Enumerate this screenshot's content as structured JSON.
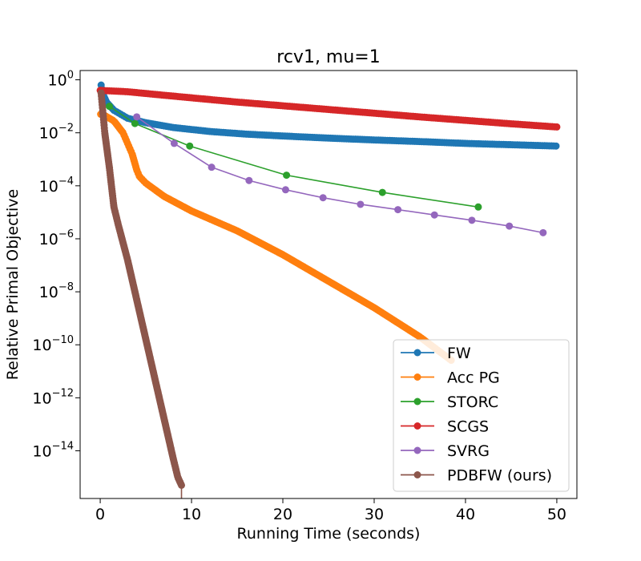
{
  "chart_data": {
    "type": "line",
    "title": "rcv1, mu=1",
    "xlabel": "Running Time (seconds)",
    "ylabel": "Relative Primal Objective",
    "y_scale": "log",
    "xlim": [
      -2.2,
      52.2
    ],
    "ylim_log10": [
      -15.8,
      0.35
    ],
    "x_ticks": [
      0,
      10,
      20,
      30,
      40,
      50
    ],
    "x_tick_labels": [
      "0",
      "10",
      "20",
      "30",
      "40",
      "50"
    ],
    "y_ticks_log10": [
      0,
      -2,
      -4,
      -6,
      -8,
      -10,
      -12,
      -14
    ],
    "y_tick_labels": [
      {
        "base": "10",
        "exp": "0"
      },
      {
        "base": "10",
        "exp": "−2"
      },
      {
        "base": "10",
        "exp": "−4"
      },
      {
        "base": "10",
        "exp": "−6"
      },
      {
        "base": "10",
        "exp": "−8"
      },
      {
        "base": "10",
        "exp": "−10"
      },
      {
        "base": "10",
        "exp": "−12"
      },
      {
        "base": "10",
        "exp": "−14"
      }
    ],
    "grid": false,
    "legend_position": "lower-right",
    "series": [
      {
        "name": "FW",
        "color": "#1f77b4",
        "dense": true,
        "x": [
          0.1,
          0.3,
          0.7,
          1.5,
          3,
          5,
          8,
          12,
          16,
          20,
          25,
          30,
          35,
          40,
          45,
          50
        ],
        "log10y": [
          -0.2,
          -0.55,
          -0.85,
          -1.15,
          -1.45,
          -1.62,
          -1.8,
          -1.95,
          -2.05,
          -2.12,
          -2.2,
          -2.27,
          -2.33,
          -2.4,
          -2.45,
          -2.5
        ]
      },
      {
        "name": "Acc PG",
        "color": "#ff7f0e",
        "dense": true,
        "x": [
          0.05,
          0.5,
          1.5,
          2.5,
          3.5,
          4.0,
          4.3,
          5,
          7,
          10,
          15,
          20,
          25,
          30,
          35,
          38.5
        ],
        "log10y": [
          -1.3,
          -1.35,
          -1.55,
          -2.0,
          -2.8,
          -3.4,
          -3.65,
          -3.9,
          -4.4,
          -4.95,
          -5.7,
          -6.6,
          -7.6,
          -8.6,
          -9.7,
          -10.6
        ]
      },
      {
        "name": "STORC",
        "color": "#2ca02c",
        "dense": false,
        "x": [
          1.0,
          3.8,
          9.8,
          20.4,
          30.9,
          41.4
        ],
        "log10y": [
          -1.0,
          -1.65,
          -2.5,
          -3.6,
          -4.25,
          -4.8
        ]
      },
      {
        "name": "SCGS",
        "color": "#d62728",
        "dense": true,
        "x": [
          0,
          3,
          6,
          10,
          15,
          20,
          25,
          30,
          35,
          40,
          45,
          50
        ],
        "log10y": [
          -0.4,
          -0.45,
          -0.55,
          -0.68,
          -0.84,
          -0.98,
          -1.12,
          -1.26,
          -1.4,
          -1.53,
          -1.66,
          -1.78
        ]
      },
      {
        "name": "SVRG",
        "color": "#9467bd",
        "dense": false,
        "x": [
          4.0,
          8.1,
          12.2,
          16.3,
          20.3,
          24.4,
          28.5,
          32.6,
          36.6,
          40.7,
          44.8,
          48.5
        ],
        "log10y": [
          -1.4,
          -2.4,
          -3.3,
          -3.8,
          -4.15,
          -4.45,
          -4.7,
          -4.9,
          -5.1,
          -5.3,
          -5.52,
          -5.77
        ]
      },
      {
        "name": "PDBFW (ours)",
        "color": "#8c564b",
        "dense": true,
        "x": [
          0.1,
          0.5,
          1,
          1.5,
          2,
          3,
          4,
          5,
          6,
          7,
          8,
          8.5,
          8.9
        ],
        "log10y": [
          -0.5,
          -2.0,
          -3.3,
          -4.8,
          -5.5,
          -6.8,
          -8.3,
          -9.8,
          -11.3,
          -12.8,
          -14.3,
          -15.0,
          -15.3
        ]
      }
    ]
  }
}
